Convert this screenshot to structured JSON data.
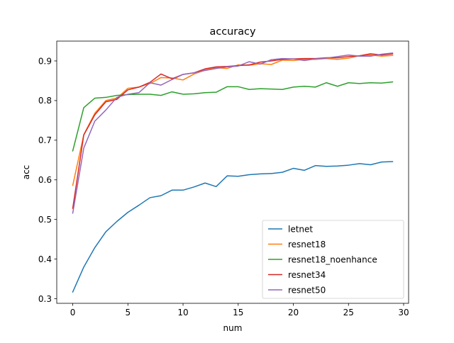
{
  "chart_data": {
    "type": "line",
    "title": "accuracy",
    "xlabel": "num",
    "ylabel": "acc",
    "xlim": [
      -1.45,
      30.45
    ],
    "ylim": [
      0.2885,
      0.95
    ],
    "xticks": [
      0,
      5,
      10,
      15,
      20,
      25,
      30
    ],
    "yticks": [
      0.3,
      0.4,
      0.5,
      0.6,
      0.7,
      0.8,
      0.9
    ],
    "grid": false,
    "legend_position": "lower-right",
    "x": [
      0,
      1,
      2,
      3,
      4,
      5,
      6,
      7,
      8,
      9,
      10,
      11,
      12,
      13,
      14,
      15,
      16,
      17,
      18,
      19,
      20,
      21,
      22,
      23,
      24,
      25,
      26,
      27,
      28,
      29
    ],
    "series": [
      {
        "name": "letnet",
        "color": "#1f77b4",
        "values": [
          0.317,
          0.38,
          0.429,
          0.469,
          0.495,
          0.518,
          0.536,
          0.555,
          0.56,
          0.574,
          0.574,
          0.582,
          0.592,
          0.583,
          0.61,
          0.609,
          0.613,
          0.615,
          0.616,
          0.619,
          0.629,
          0.624,
          0.636,
          0.634,
          0.635,
          0.637,
          0.641,
          0.638,
          0.645,
          0.646
        ]
      },
      {
        "name": "resnet18",
        "color": "#ff7f0e",
        "values": [
          0.586,
          0.714,
          0.768,
          0.8,
          0.806,
          0.831,
          0.834,
          0.843,
          0.858,
          0.857,
          0.852,
          0.867,
          0.877,
          0.883,
          0.881,
          0.89,
          0.889,
          0.893,
          0.891,
          0.902,
          0.901,
          0.904,
          0.904,
          0.906,
          0.904,
          0.907,
          0.913,
          0.915,
          0.912,
          0.914
        ]
      },
      {
        "name": "resnet18_noenhance",
        "color": "#2ca02c",
        "values": [
          0.673,
          0.782,
          0.806,
          0.808,
          0.813,
          0.815,
          0.816,
          0.816,
          0.813,
          0.822,
          0.816,
          0.817,
          0.82,
          0.821,
          0.835,
          0.835,
          0.828,
          0.83,
          0.829,
          0.828,
          0.834,
          0.836,
          0.834,
          0.845,
          0.836,
          0.845,
          0.843,
          0.845,
          0.844,
          0.847
        ]
      },
      {
        "name": "resnet34",
        "color": "#d62728",
        "values": [
          0.528,
          0.713,
          0.764,
          0.797,
          0.803,
          0.827,
          0.834,
          0.846,
          0.867,
          0.855,
          0.866,
          0.87,
          0.88,
          0.885,
          0.886,
          0.888,
          0.89,
          0.897,
          0.9,
          0.904,
          0.905,
          0.906,
          0.906,
          0.908,
          0.908,
          0.911,
          0.913,
          0.918,
          0.915,
          0.918
        ]
      },
      {
        "name": "resnet50",
        "color": "#9467bd",
        "values": [
          0.516,
          0.68,
          0.748,
          0.776,
          0.808,
          0.816,
          0.82,
          0.845,
          0.839,
          0.853,
          0.866,
          0.87,
          0.876,
          0.881,
          0.885,
          0.887,
          0.898,
          0.892,
          0.903,
          0.906,
          0.905,
          0.901,
          0.905,
          0.907,
          0.911,
          0.915,
          0.912,
          0.912,
          0.917,
          0.92
        ]
      }
    ]
  }
}
